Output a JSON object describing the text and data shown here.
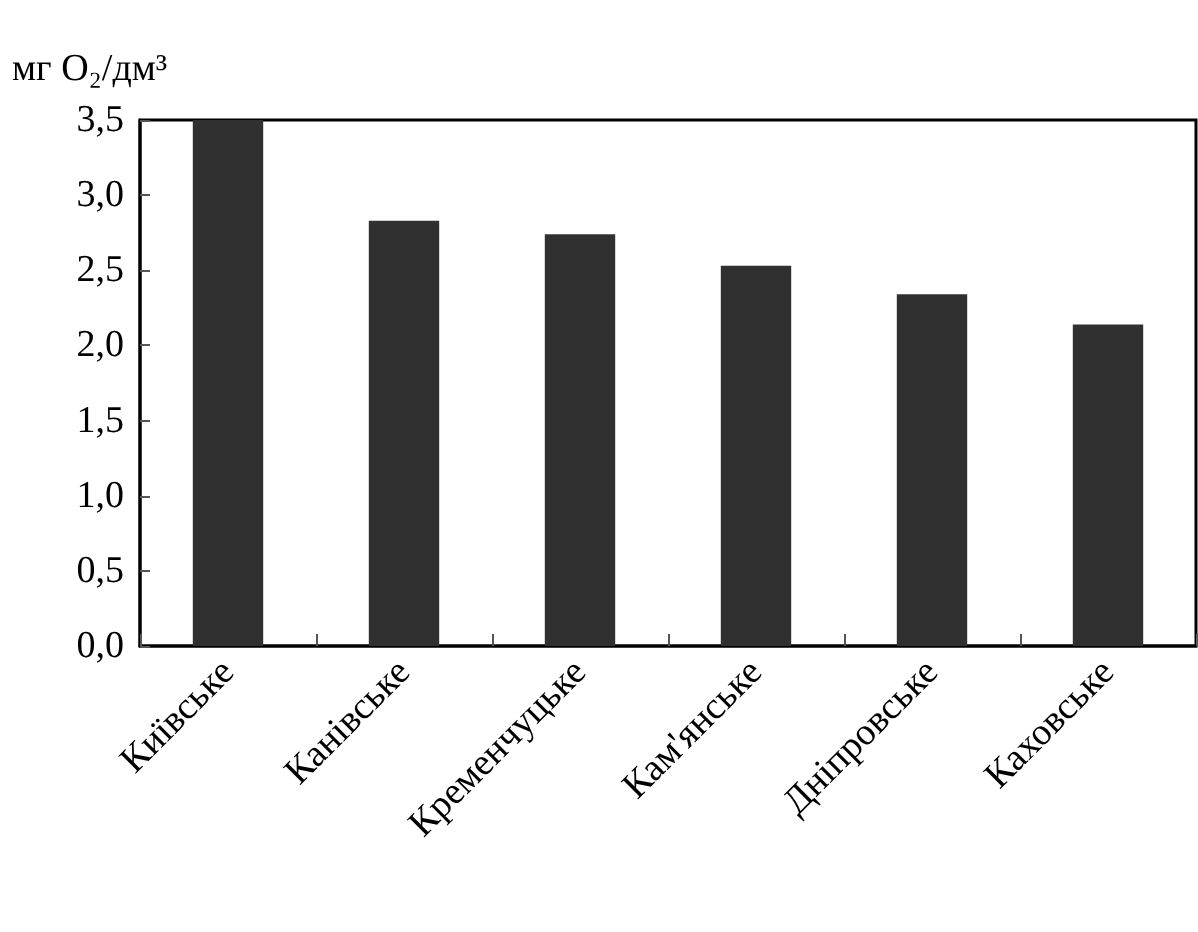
{
  "chart_data": {
    "type": "bar",
    "ylabel": "мг O₂/дм³",
    "categories": [
      "Київське",
      "Канівське",
      "Кременчуцьке",
      "Кам'янське",
      "Дніпровське",
      "Каховське"
    ],
    "values": [
      3.5,
      2.83,
      2.74,
      2.53,
      2.34,
      2.14
    ],
    "color": "#303030",
    "ylim": [
      0,
      3.5
    ],
    "yticks": [
      {
        "value": 0,
        "label": "0,0"
      },
      {
        "value": 0.5,
        "label": "0,5"
      },
      {
        "value": 1,
        "label": "1,0"
      },
      {
        "value": 1.5,
        "label": "1,5"
      },
      {
        "value": 2,
        "label": "2,0"
      },
      {
        "value": 2.5,
        "label": "2,5"
      },
      {
        "value": 3,
        "label": "3,0"
      },
      {
        "value": 3.5,
        "label": "3,5"
      }
    ],
    "grid": false
  }
}
